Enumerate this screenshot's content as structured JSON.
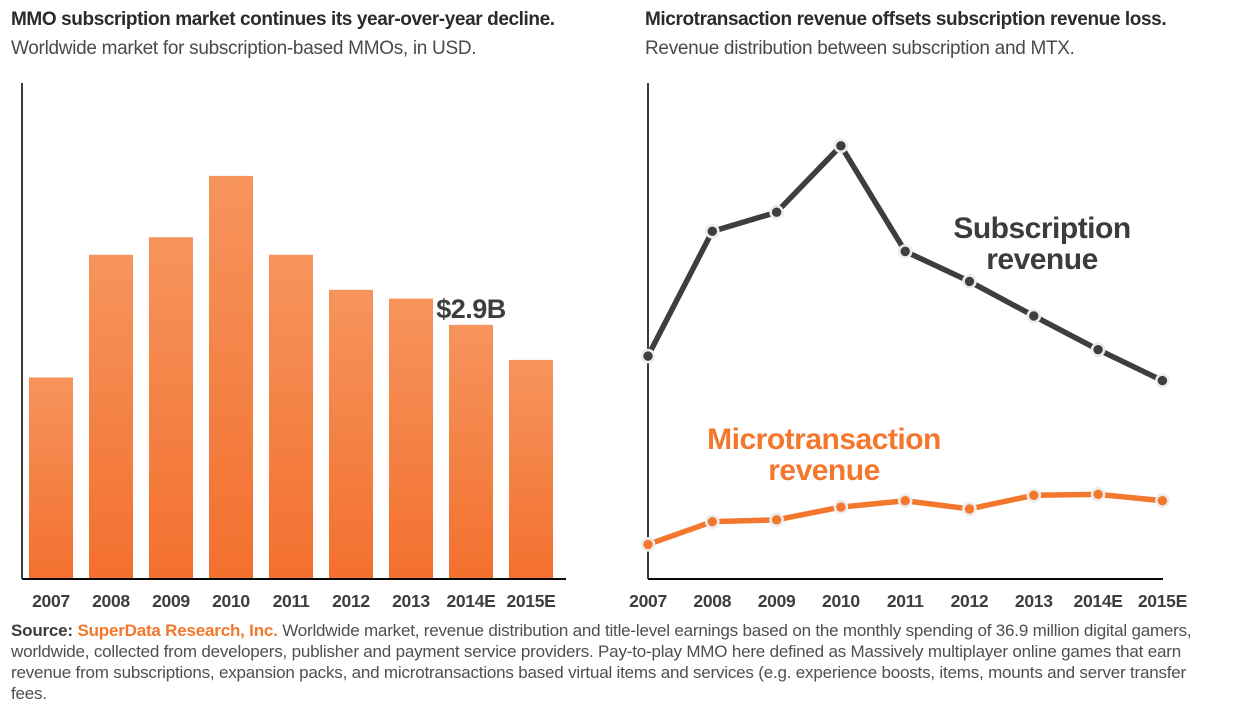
{
  "page": {
    "background": "#ffffff"
  },
  "chart_data": [
    {
      "type": "bar",
      "title": "MMO subscription market continues its year-over-year decline.",
      "subtitle": "Worldwide market for subscription-based MMOs, in USD.",
      "categories": [
        "2007",
        "2008",
        "2009",
        "2010",
        "2011",
        "2012",
        "2013",
        "2014E",
        "2015E"
      ],
      "values": [
        2.3,
        3.7,
        3.9,
        4.6,
        3.7,
        3.3,
        3.2,
        2.9,
        2.5
      ],
      "unit": "USD billions (estimated from bar heights; only 2014E value labeled on chart)",
      "annotation": {
        "text": "$2.9B",
        "category": "2014E"
      },
      "xlabel": "",
      "ylabel": "",
      "ylim": [
        0,
        5.66
      ],
      "grid": false,
      "legend": "none",
      "colors": {
        "bar_top": "#f6945d",
        "bar_bottom": "#f3702e",
        "axis": "#0a0a0a",
        "tick_label": "#3e3e3e",
        "annotation": "#3e3e3e"
      }
    },
    {
      "type": "line",
      "title": "Microtransaction revenue offsets subscription revenue loss.",
      "subtitle": "Revenue distribution between subscription and MTX.",
      "categories": [
        "2007",
        "2008",
        "2009",
        "2010",
        "2011",
        "2012",
        "2013",
        "2014E",
        "2015E"
      ],
      "series": [
        {
          "name": "Subscription revenue",
          "color": "#3e3e3e",
          "values": [
            2.45,
            3.82,
            4.03,
            4.76,
            3.6,
            3.27,
            2.89,
            2.52,
            2.18
          ]
        },
        {
          "name": "Microtransaction revenue",
          "color": "#f4772e",
          "values": [
            0.38,
            0.63,
            0.65,
            0.79,
            0.86,
            0.77,
            0.92,
            0.93,
            0.86
          ]
        }
      ],
      "unit": "USD billions (estimated; y-axis unlabeled on chart)",
      "xlabel": "",
      "ylabel": "",
      "ylim": [
        0,
        5.45
      ],
      "grid": false,
      "legend": "inline labels next to lines",
      "colors": {
        "axis": "#0a0a0a",
        "tick_label": "#3e3e3e",
        "marker_ring": "#ececec"
      }
    }
  ],
  "source": {
    "prefix": "Source:",
    "brand": "SuperData Research, Inc.",
    "text": "Worldwide market, revenue distribution and title-level earnings based on the monthly spending of 36.9 million digital gamers, worldwide, collected from developers, publisher and payment service providers. Pay-to-play MMO here defined as Massively multiplayer online games that earn revenue from subscriptions, expansion packs, and microtransactions based virtual items and services (e.g. experience boosts, items, mounts and server transfer fees."
  }
}
